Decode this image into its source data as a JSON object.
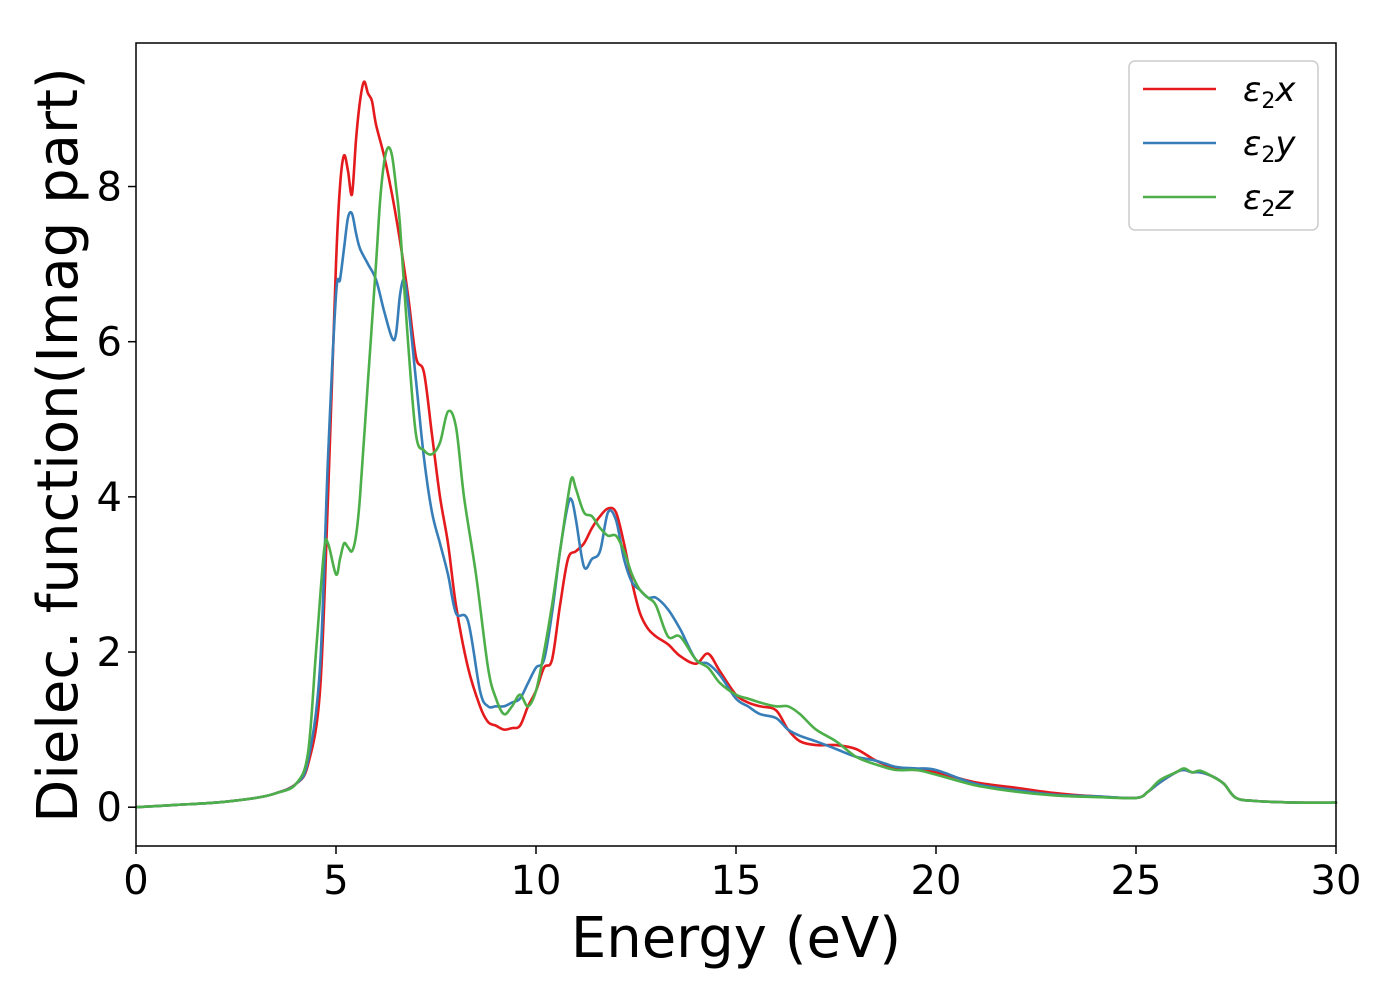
{
  "chart_data": {
    "type": "line",
    "title": "",
    "xlabel": "Energy (eV)",
    "ylabel": "Dielec. function(Imag part)",
    "xlim": [
      0,
      30
    ],
    "ylim": [
      -0.5,
      9.85
    ],
    "xticks": [
      0,
      5,
      10,
      15,
      20,
      25,
      30
    ],
    "yticks": [
      0,
      2,
      4,
      6,
      8
    ],
    "grid": false,
    "legend_position": "top-right",
    "series": [
      {
        "name": "ε2x",
        "legend_main": "ε",
        "legend_sub": "2",
        "legend_suffix": "x",
        "color": "#e41a1c",
        "x": [
          0,
          1,
          2,
          3,
          3.5,
          4,
          4.3,
          4.6,
          4.8,
          5.0,
          5.1,
          5.2,
          5.3,
          5.4,
          5.5,
          5.6,
          5.7,
          5.8,
          5.9,
          6.0,
          6.2,
          6.4,
          6.6,
          6.8,
          7.0,
          7.2,
          7.4,
          7.6,
          7.8,
          8.0,
          8.3,
          8.6,
          8.8,
          9.0,
          9.2,
          9.4,
          9.6,
          9.8,
          10.0,
          10.2,
          10.4,
          10.6,
          10.8,
          11.0,
          11.2,
          11.4,
          11.6,
          11.8,
          12.0,
          12.2,
          12.4,
          12.6,
          12.8,
          13.0,
          13.3,
          13.6,
          14.0,
          14.3,
          14.6,
          15.0,
          15.3,
          15.6,
          16.0,
          16.3,
          16.6,
          17.0,
          17.5,
          18.0,
          18.5,
          19.0,
          19.5,
          20.0,
          21.0,
          22.0,
          23.0,
          24.0,
          25.0,
          25.3,
          25.6,
          26.0,
          26.2,
          26.4,
          26.6,
          26.9,
          27.2,
          27.5,
          28.0,
          29.0,
          30.0
        ],
        "y": [
          0,
          0.03,
          0.06,
          0.12,
          0.18,
          0.3,
          0.55,
          1.5,
          4.0,
          7.0,
          8.0,
          8.4,
          8.2,
          7.9,
          8.6,
          9.1,
          9.35,
          9.2,
          9.1,
          8.8,
          8.4,
          7.9,
          7.3,
          6.6,
          5.8,
          5.6,
          4.8,
          4.0,
          3.4,
          2.6,
          1.8,
          1.3,
          1.1,
          1.05,
          1.0,
          1.02,
          1.05,
          1.3,
          1.5,
          1.8,
          1.9,
          2.6,
          3.2,
          3.3,
          3.4,
          3.6,
          3.75,
          3.85,
          3.8,
          3.4,
          2.9,
          2.5,
          2.3,
          2.2,
          2.1,
          1.95,
          1.85,
          1.98,
          1.75,
          1.45,
          1.35,
          1.3,
          1.25,
          1.0,
          0.85,
          0.8,
          0.8,
          0.75,
          0.6,
          0.5,
          0.48,
          0.45,
          0.32,
          0.25,
          0.18,
          0.14,
          0.12,
          0.2,
          0.32,
          0.45,
          0.48,
          0.45,
          0.45,
          0.4,
          0.3,
          0.12,
          0.08,
          0.06,
          0.06
        ]
      },
      {
        "name": "ε2y",
        "legend_main": "ε",
        "legend_sub": "2",
        "legend_suffix": "y",
        "color": "#377eb8",
        "x": [
          0,
          1,
          2,
          3,
          3.5,
          4,
          4.3,
          4.6,
          4.8,
          5.0,
          5.1,
          5.2,
          5.3,
          5.4,
          5.5,
          5.6,
          5.8,
          6.0,
          6.2,
          6.4,
          6.5,
          6.6,
          6.7,
          6.8,
          7.0,
          7.2,
          7.4,
          7.6,
          7.8,
          8.0,
          8.3,
          8.6,
          8.8,
          9.0,
          9.2,
          9.4,
          9.6,
          9.8,
          10.0,
          10.2,
          10.4,
          10.6,
          10.8,
          10.9,
          11.0,
          11.2,
          11.4,
          11.6,
          11.8,
          12.0,
          12.2,
          12.4,
          12.6,
          12.8,
          13.0,
          13.3,
          13.6,
          14.0,
          14.3,
          14.6,
          15.0,
          15.3,
          15.6,
          16.0,
          16.3,
          16.6,
          17.0,
          17.5,
          18.0,
          18.5,
          19.0,
          19.5,
          20.0,
          21.0,
          22.0,
          23.0,
          24.0,
          25.0,
          25.3,
          25.6,
          26.0,
          26.2,
          26.4,
          26.6,
          26.9,
          27.2,
          27.5,
          28.0,
          29.0,
          30.0
        ],
        "y": [
          0,
          0.03,
          0.06,
          0.12,
          0.18,
          0.3,
          0.6,
          1.8,
          4.5,
          6.6,
          6.8,
          7.2,
          7.6,
          7.65,
          7.4,
          7.2,
          7.0,
          6.8,
          6.4,
          6.05,
          6.1,
          6.6,
          6.8,
          6.5,
          5.5,
          4.5,
          3.8,
          3.4,
          3.0,
          2.5,
          2.4,
          1.5,
          1.3,
          1.3,
          1.3,
          1.35,
          1.4,
          1.6,
          1.8,
          1.9,
          2.5,
          3.3,
          3.9,
          3.95,
          3.7,
          3.1,
          3.2,
          3.3,
          3.8,
          3.7,
          3.2,
          2.9,
          2.8,
          2.7,
          2.7,
          2.55,
          2.3,
          1.9,
          1.85,
          1.7,
          1.4,
          1.3,
          1.2,
          1.15,
          1.0,
          0.92,
          0.85,
          0.75,
          0.65,
          0.6,
          0.52,
          0.5,
          0.48,
          0.3,
          0.22,
          0.16,
          0.14,
          0.12,
          0.2,
          0.32,
          0.45,
          0.48,
          0.45,
          0.45,
          0.4,
          0.3,
          0.12,
          0.08,
          0.06,
          0.06
        ]
      },
      {
        "name": "ε2z",
        "legend_main": "ε",
        "legend_sub": "2",
        "legend_suffix": "z",
        "color": "#4daf4a",
        "x": [
          0,
          1,
          2,
          3,
          3.5,
          4,
          4.3,
          4.5,
          4.7,
          4.8,
          5.0,
          5.1,
          5.2,
          5.3,
          5.4,
          5.5,
          5.6,
          5.8,
          6.0,
          6.1,
          6.2,
          6.3,
          6.4,
          6.5,
          6.6,
          6.8,
          7.0,
          7.2,
          7.4,
          7.6,
          7.8,
          8.0,
          8.2,
          8.5,
          8.8,
          9.0,
          9.2,
          9.4,
          9.6,
          9.8,
          10.0,
          10.2,
          10.4,
          10.6,
          10.8,
          10.9,
          11.0,
          11.2,
          11.4,
          11.6,
          11.8,
          12.0,
          12.2,
          12.4,
          12.6,
          12.8,
          13.0,
          13.3,
          13.6,
          14.0,
          14.3,
          14.6,
          15.0,
          15.3,
          15.6,
          16.0,
          16.3,
          16.6,
          17.0,
          17.5,
          18.0,
          18.5,
          19.0,
          19.5,
          20.0,
          21.0,
          22.0,
          23.0,
          24.0,
          25.0,
          25.3,
          25.6,
          26.0,
          26.2,
          26.4,
          26.6,
          26.9,
          27.2,
          27.5,
          28.0,
          29.0,
          30.0
        ],
        "y": [
          0,
          0.03,
          0.06,
          0.12,
          0.18,
          0.3,
          0.7,
          2.0,
          3.3,
          3.4,
          3.0,
          3.2,
          3.4,
          3.35,
          3.3,
          3.5,
          4.0,
          5.5,
          7.0,
          7.8,
          8.3,
          8.5,
          8.4,
          8.0,
          7.5,
          6.0,
          4.8,
          4.6,
          4.55,
          4.7,
          5.1,
          4.9,
          4.0,
          3.0,
          1.8,
          1.4,
          1.2,
          1.3,
          1.45,
          1.3,
          1.5,
          2.0,
          2.6,
          3.3,
          4.0,
          4.25,
          4.1,
          3.8,
          3.75,
          3.6,
          3.5,
          3.5,
          3.3,
          3.0,
          2.8,
          2.7,
          2.6,
          2.2,
          2.2,
          1.9,
          1.8,
          1.6,
          1.45,
          1.4,
          1.35,
          1.3,
          1.3,
          1.2,
          1.0,
          0.85,
          0.65,
          0.55,
          0.48,
          0.48,
          0.42,
          0.28,
          0.2,
          0.15,
          0.13,
          0.12,
          0.2,
          0.35,
          0.45,
          0.5,
          0.45,
          0.47,
          0.4,
          0.3,
          0.12,
          0.08,
          0.06,
          0.06
        ]
      }
    ]
  }
}
